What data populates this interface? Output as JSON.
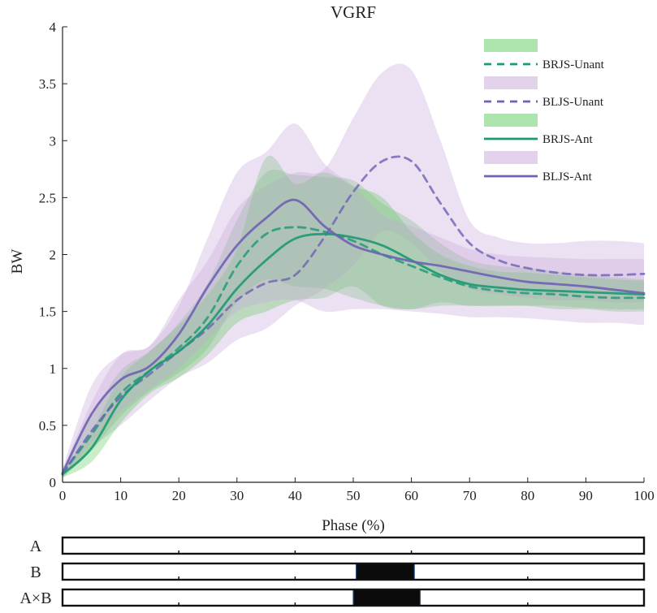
{
  "chart_data": {
    "type": "line",
    "title": "VGRF",
    "xlabel": "Phase (%)",
    "ylabel": "BW",
    "xlim": [
      0,
      100
    ],
    "ylim": [
      0,
      4
    ],
    "xticks": [
      0,
      10,
      20,
      30,
      40,
      50,
      60,
      70,
      80,
      90,
      100
    ],
    "xtick_labels": [
      "0",
      "10",
      "20",
      "30",
      "40",
      "50",
      "60",
      "70",
      "80",
      "90",
      "100"
    ],
    "yticks": [
      0,
      0.5,
      1,
      1.5,
      2,
      2.5,
      3,
      3.5,
      4
    ],
    "ytick_labels": [
      "0",
      "0.5",
      "1",
      "1.5",
      "2",
      "2.5",
      "3",
      "3.5",
      "4"
    ],
    "legend_position": "top-right",
    "series": [
      {
        "name": "BRJS-Unant",
        "color": "#1a9a72",
        "band_color": "#5cc85c",
        "dash": true,
        "x": [
          0,
          5,
          10,
          15,
          20,
          25,
          30,
          35,
          40,
          45,
          50,
          55,
          60,
          65,
          70,
          75,
          80,
          85,
          90,
          95,
          100
        ],
        "mean": [
          0.08,
          0.42,
          0.78,
          0.98,
          1.18,
          1.45,
          1.9,
          2.18,
          2.24,
          2.2,
          2.12,
          2.0,
          1.9,
          1.8,
          1.72,
          1.68,
          1.66,
          1.65,
          1.63,
          1.62,
          1.62
        ],
        "upper": [
          0.12,
          0.58,
          0.98,
          1.15,
          1.4,
          1.75,
          2.3,
          2.72,
          2.7,
          2.68,
          2.65,
          2.45,
          2.3,
          2.1,
          1.95,
          1.9,
          1.88,
          1.85,
          1.82,
          1.8,
          1.78
        ],
        "lower": [
          0.04,
          0.28,
          0.58,
          0.8,
          0.96,
          1.18,
          1.58,
          1.78,
          1.72,
          1.7,
          1.62,
          1.55,
          1.52,
          1.55,
          1.55,
          1.55,
          1.55,
          1.52,
          1.52,
          1.5,
          1.5
        ]
      },
      {
        "name": "BLJS-Unant",
        "color": "#6e62b4",
        "band_color": "#c5a5d8",
        "dash": true,
        "x": [
          0,
          5,
          10,
          15,
          20,
          25,
          30,
          35,
          40,
          45,
          50,
          55,
          60,
          65,
          70,
          75,
          80,
          85,
          90,
          95,
          100
        ],
        "mean": [
          0.07,
          0.45,
          0.75,
          0.95,
          1.15,
          1.35,
          1.6,
          1.75,
          1.82,
          2.15,
          2.55,
          2.82,
          2.82,
          2.45,
          2.1,
          1.95,
          1.88,
          1.84,
          1.82,
          1.82,
          1.83
        ],
        "upper": [
          0.1,
          0.7,
          1.12,
          1.2,
          1.6,
          1.95,
          2.4,
          2.6,
          2.72,
          2.75,
          3.2,
          3.6,
          3.62,
          3.0,
          2.3,
          2.15,
          2.1,
          2.1,
          2.12,
          2.12,
          2.1
        ],
        "lower": [
          0.04,
          0.3,
          0.5,
          0.72,
          0.92,
          1.05,
          1.25,
          1.35,
          1.55,
          1.7,
          1.9,
          2.2,
          2.1,
          1.85,
          1.7,
          1.65,
          1.62,
          1.6,
          1.6,
          1.58,
          1.58
        ]
      },
      {
        "name": "BRJS-Ant",
        "color": "#1a9a72",
        "band_color": "#5cc85c",
        "dash": false,
        "x": [
          0,
          5,
          10,
          15,
          20,
          25,
          30,
          35,
          40,
          45,
          50,
          55,
          60,
          65,
          70,
          75,
          80,
          85,
          90,
          95,
          100
        ],
        "mean": [
          0.07,
          0.3,
          0.72,
          0.98,
          1.15,
          1.38,
          1.7,
          1.95,
          2.14,
          2.18,
          2.15,
          2.08,
          1.95,
          1.82,
          1.74,
          1.71,
          1.69,
          1.68,
          1.67,
          1.66,
          1.65
        ],
        "upper": [
          0.1,
          0.45,
          0.92,
          1.15,
          1.38,
          1.65,
          2.05,
          2.85,
          2.62,
          2.72,
          2.6,
          2.5,
          2.2,
          2.0,
          1.9,
          1.85,
          1.84,
          1.82,
          1.8,
          1.78,
          1.77
        ],
        "lower": [
          0.04,
          0.18,
          0.52,
          0.78,
          0.92,
          1.12,
          1.4,
          1.5,
          1.6,
          1.62,
          1.72,
          1.55,
          1.52,
          1.58,
          1.55,
          1.55,
          1.55,
          1.55,
          1.53,
          1.52,
          1.52
        ]
      },
      {
        "name": "BLJS-Ant",
        "color": "#6e62b4",
        "band_color": "#c5a5d8",
        "dash": false,
        "x": [
          0,
          5,
          10,
          15,
          20,
          25,
          30,
          35,
          40,
          45,
          50,
          55,
          60,
          65,
          70,
          75,
          80,
          85,
          90,
          95,
          100
        ],
        "mean": [
          0.08,
          0.6,
          0.9,
          1.02,
          1.3,
          1.72,
          2.08,
          2.32,
          2.48,
          2.25,
          2.08,
          2.0,
          1.94,
          1.9,
          1.85,
          1.8,
          1.76,
          1.74,
          1.72,
          1.69,
          1.66
        ],
        "upper": [
          0.12,
          0.85,
          1.12,
          1.2,
          1.55,
          2.15,
          2.72,
          2.9,
          3.15,
          2.8,
          2.6,
          2.35,
          2.25,
          2.15,
          2.05,
          2.0,
          1.98,
          1.97,
          1.96,
          1.96,
          1.96
        ],
        "lower": [
          0.04,
          0.35,
          0.62,
          0.82,
          1.0,
          1.25,
          1.5,
          1.58,
          1.6,
          1.5,
          1.52,
          1.52,
          1.5,
          1.48,
          1.45,
          1.45,
          1.44,
          1.42,
          1.4,
          1.4,
          1.38
        ]
      }
    ],
    "significance": [
      {
        "label": "A",
        "intervals": []
      },
      {
        "label": "B",
        "intervals": [
          [
            50.5,
            60.5
          ]
        ]
      },
      {
        "label": "A×B",
        "intervals": [
          [
            50,
            61.5
          ]
        ]
      }
    ]
  }
}
